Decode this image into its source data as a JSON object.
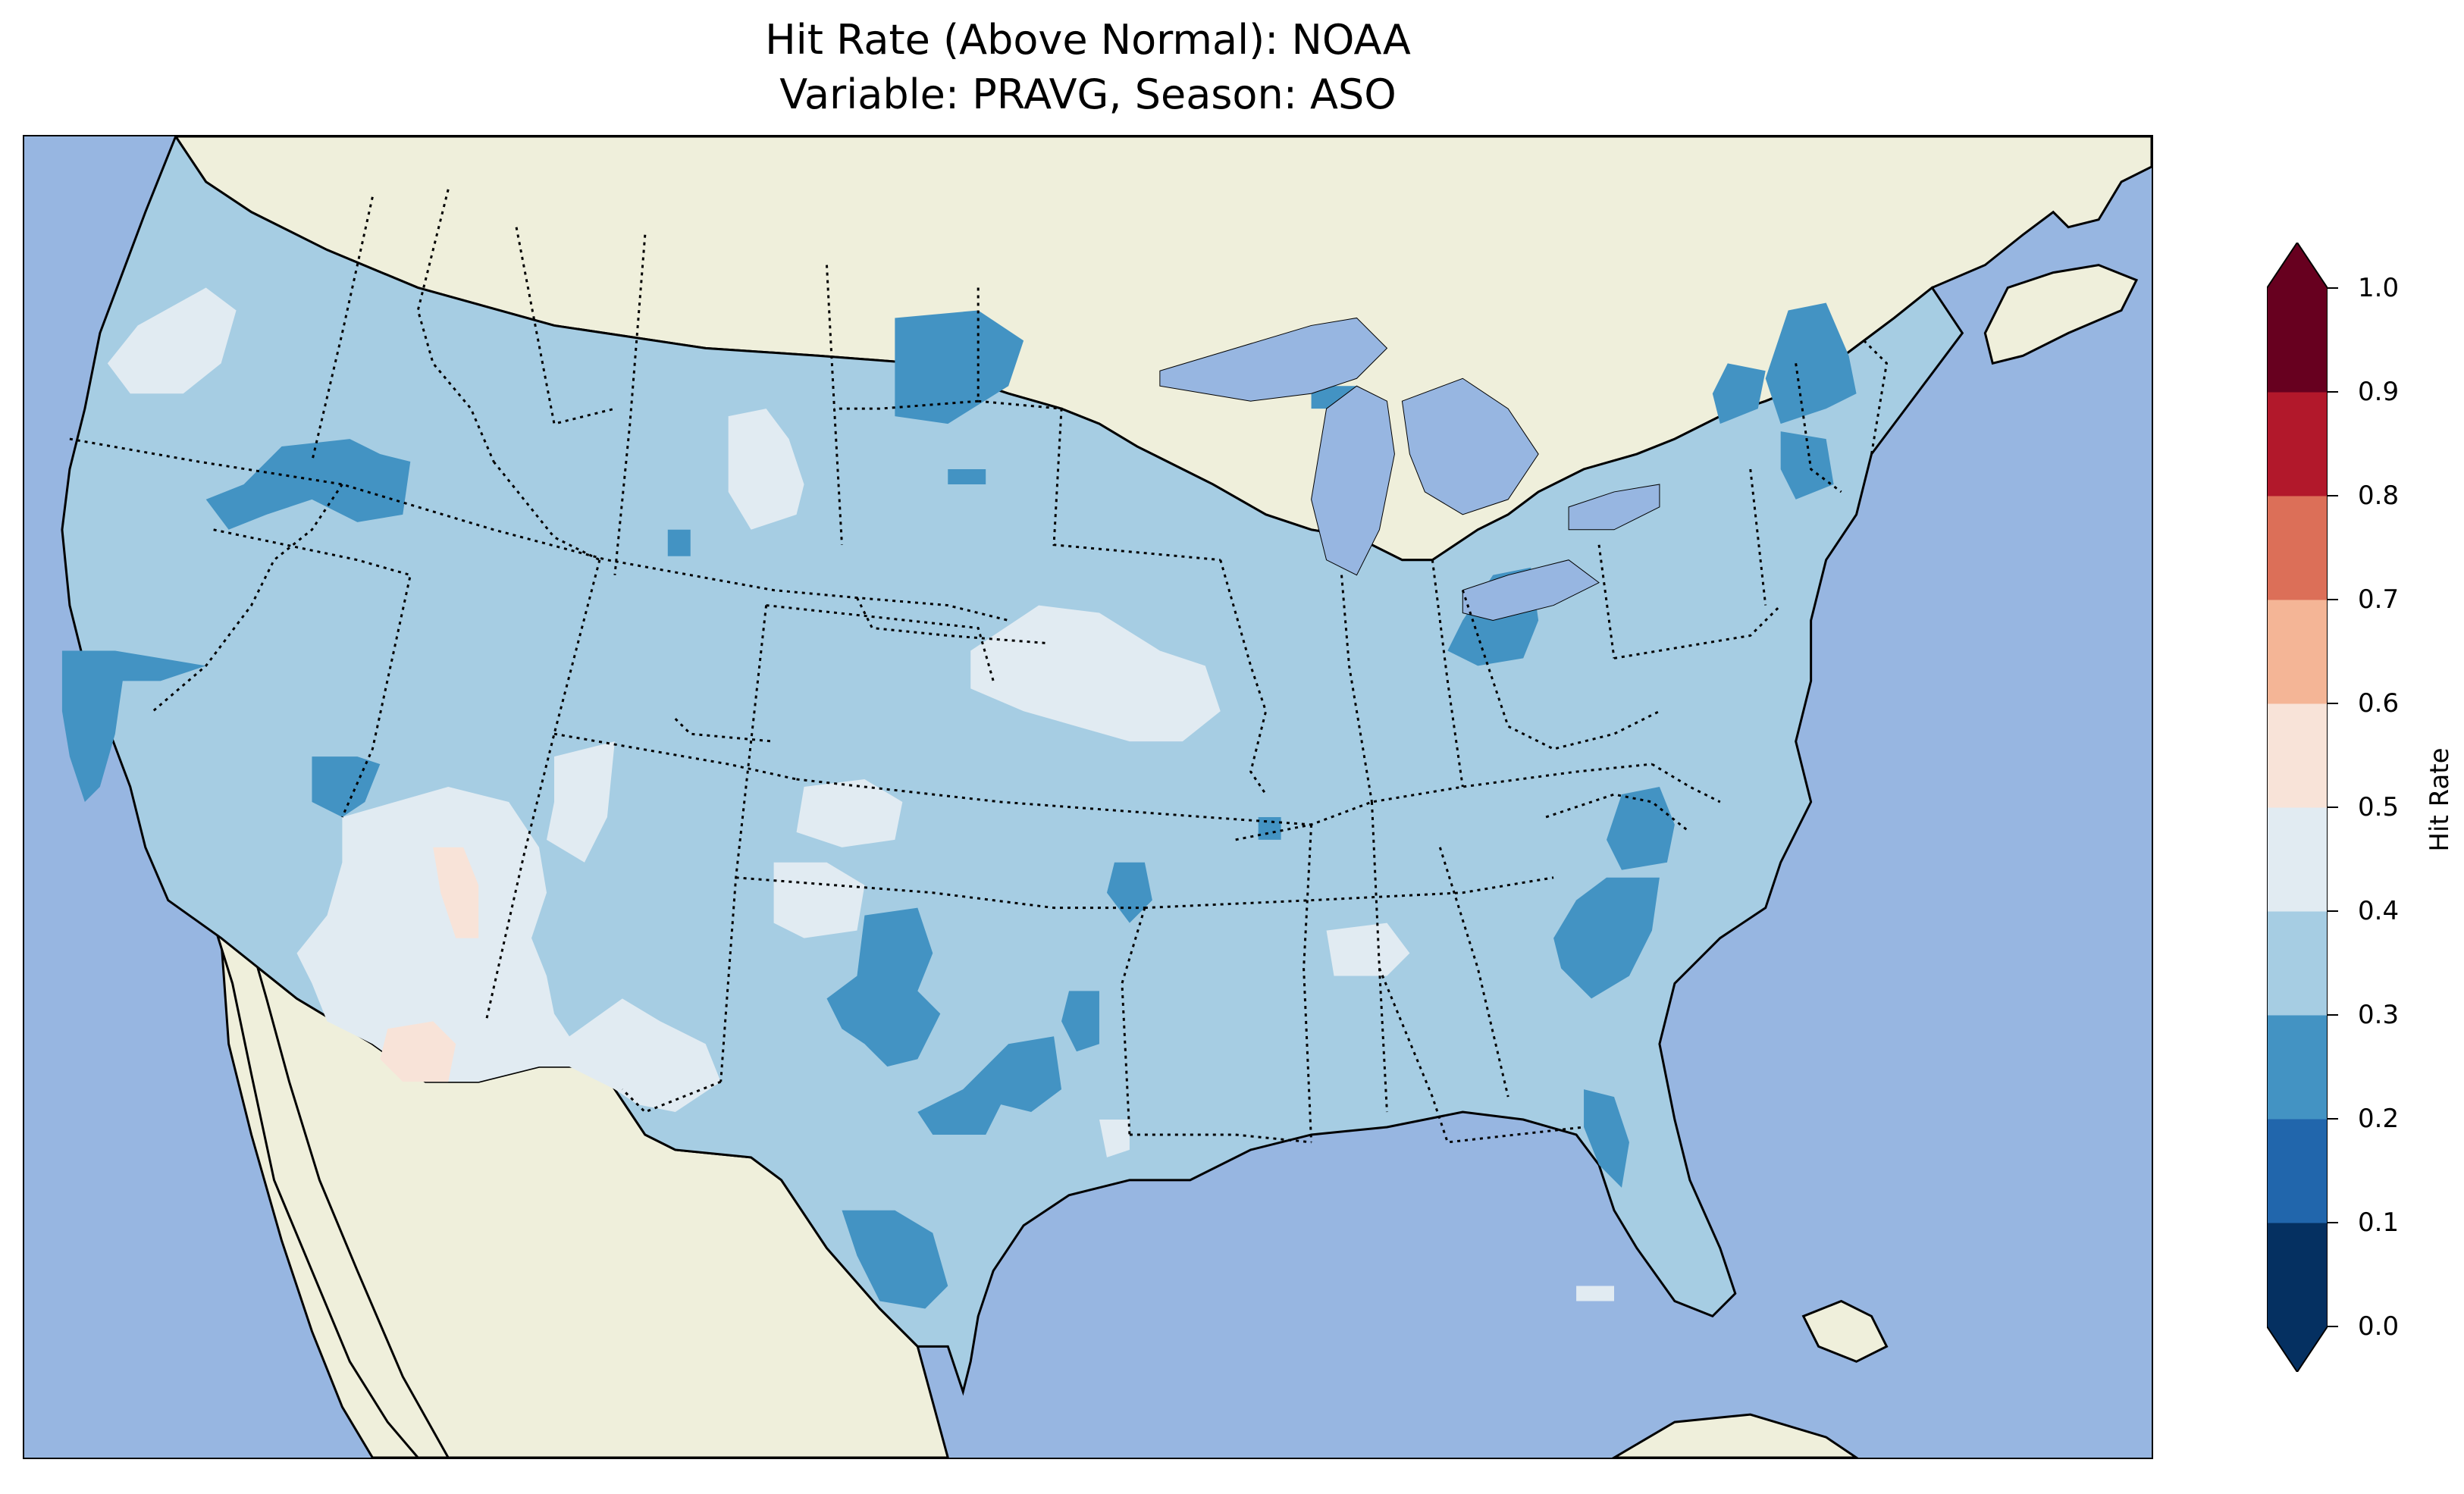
{
  "title": {
    "line1": "Hit Rate (Above Normal): NOAA",
    "line2": "Variable: PRAVG, Season: ASO"
  },
  "map": {
    "ocean_color": "#97b6e1",
    "land_color": "#efefdb",
    "lake_color": "#97b6e1"
  },
  "colorbar": {
    "label": "Hit Rate",
    "ticks": [
      "0.0",
      "0.1",
      "0.2",
      "0.3",
      "0.4",
      "0.5",
      "0.6",
      "0.7",
      "0.8",
      "0.9",
      "1.0"
    ],
    "bins": [
      {
        "from": 0.0,
        "to": 0.1,
        "color": "#053061"
      },
      {
        "from": 0.1,
        "to": 0.2,
        "color": "#2166ac"
      },
      {
        "from": 0.2,
        "to": 0.3,
        "color": "#4393c3"
      },
      {
        "from": 0.3,
        "to": 0.4,
        "color": "#a6cde3"
      },
      {
        "from": 0.4,
        "to": 0.5,
        "color": "#e1ebf2"
      },
      {
        "from": 0.5,
        "to": 0.6,
        "color": "#f8e3d8"
      },
      {
        "from": 0.6,
        "to": 0.7,
        "color": "#f4b596"
      },
      {
        "from": 0.7,
        "to": 0.8,
        "color": "#dc6f58"
      },
      {
        "from": 0.8,
        "to": 0.9,
        "color": "#b2182b"
      },
      {
        "from": 0.9,
        "to": 1.0,
        "color": "#67001f"
      }
    ],
    "extend": "both"
  }
}
